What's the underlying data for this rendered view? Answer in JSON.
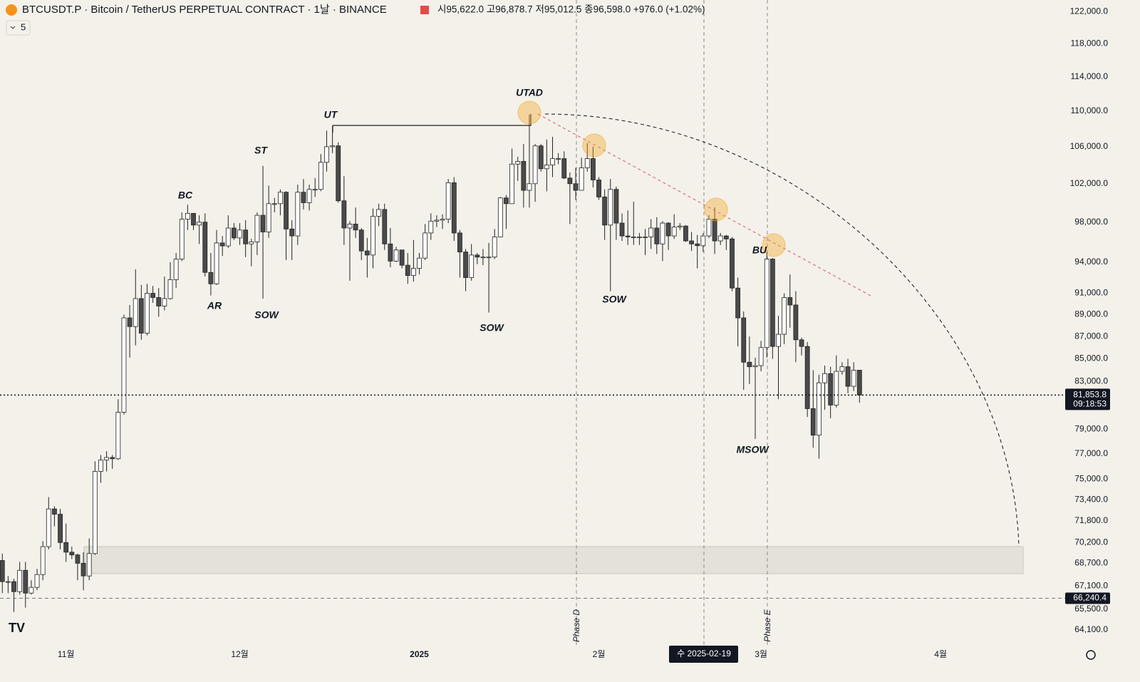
{
  "chart_data": {
    "type": "candlestick",
    "title": "BTCUSDT.P · Bitcoin / TetherUS PERPETUAL CONTRACT · 1날 · BINANCE",
    "ohlc_text": "시95,622.0 고96,878.7 저95,012.5 종96,598.0 +976.0 (+1.02%)",
    "indicator_count": "5",
    "log_scale": true,
    "ylim": [
      63100,
      123500
    ],
    "xlim": [
      -0.4,
      182.9
    ],
    "yticks": [
      {
        "value": 122000,
        "label": "122,000.0"
      },
      {
        "value": 118000,
        "label": "118,000.0"
      },
      {
        "value": 114000,
        "label": "114,000.0"
      },
      {
        "value": 110000,
        "label": "110,000.0"
      },
      {
        "value": 106000,
        "label": "106,000.0"
      },
      {
        "value": 102000,
        "label": "102,000.0"
      },
      {
        "value": 98000,
        "label": "98,000.0"
      },
      {
        "value": 94000,
        "label": "94,000.0"
      },
      {
        "value": 91000,
        "label": "91,000.0"
      },
      {
        "value": 89000,
        "label": "89,000.0"
      },
      {
        "value": 87000,
        "label": "87,000.0"
      },
      {
        "value": 85000,
        "label": "85,000.0"
      },
      {
        "value": 83000,
        "label": "83,000.0"
      },
      {
        "value": 79000,
        "label": "79,000.0"
      },
      {
        "value": 77000,
        "label": "77,000.0"
      },
      {
        "value": 75000,
        "label": "75,000.0"
      },
      {
        "value": 73400,
        "label": "73,400.0"
      },
      {
        "value": 71800,
        "label": "71,800.0"
      },
      {
        "value": 70200,
        "label": "70,200.0"
      },
      {
        "value": 68700,
        "label": "68,700.0"
      },
      {
        "value": 67100,
        "label": "67,100.0"
      },
      {
        "value": 65500,
        "label": "65,500.0"
      },
      {
        "value": 64100,
        "label": "64,100.0"
      }
    ],
    "xticks": [
      {
        "value": 11,
        "label": "11월"
      },
      {
        "value": 41,
        "label": "12월"
      },
      {
        "value": 72,
        "label": "2025"
      },
      {
        "value": 103,
        "label": "2월"
      },
      {
        "value": 131,
        "label": "3월"
      },
      {
        "value": 162,
        "label": "4월"
      }
    ],
    "up_color": "#ffffff",
    "down_color": "#4a4a4a",
    "wick_color": "#222222",
    "current_price": {
      "value": 81853.8,
      "label": "81,853.8"
    },
    "countdown": "09:18:53",
    "level_line": {
      "value": 66240.4,
      "label": "66,240.4"
    },
    "crosshair_label": "수 2025-02-19",
    "phase_labels": [
      "Phase D",
      "Phase E"
    ],
    "annotations": [
      "BC",
      "AR",
      "ST",
      "SOW",
      "UT",
      "SOW",
      "UTAD",
      "SOW",
      "BU",
      "MSOW"
    ],
    "candles": [
      [
        68900,
        69400,
        66600,
        67400
      ],
      [
        67400,
        67800,
        66600,
        67400
      ],
      [
        67400,
        67600,
        65300,
        66700
      ],
      [
        66700,
        68800,
        66500,
        68200
      ],
      [
        68200,
        68800,
        65600,
        66600
      ],
      [
        66600,
        67500,
        66500,
        67000
      ],
      [
        67000,
        68300,
        66800,
        67900
      ],
      [
        67900,
        70300,
        67500,
        69900
      ],
      [
        69900,
        73600,
        69700,
        72700
      ],
      [
        72700,
        72900,
        71400,
        72300
      ],
      [
        72300,
        72700,
        69700,
        70200
      ],
      [
        70200,
        71600,
        68800,
        69500
      ],
      [
        69500,
        69900,
        69000,
        69300
      ],
      [
        69300,
        69400,
        67500,
        68700
      ],
      [
        68700,
        69500,
        66800,
        67800
      ],
      [
        67800,
        70500,
        67500,
        69400
      ],
      [
        69400,
        76400,
        69300,
        75600
      ],
      [
        75600,
        76900,
        74700,
        76500
      ],
      [
        76500,
        77200,
        75600,
        76700
      ],
      [
        76700,
        76900,
        75800,
        76600
      ],
      [
        76600,
        81500,
        76500,
        80400
      ],
      [
        80400,
        89000,
        80200,
        88700
      ],
      [
        88700,
        89900,
        85100,
        87900
      ],
      [
        87900,
        93300,
        86200,
        90500
      ],
      [
        90500,
        91800,
        86700,
        87300
      ],
      [
        87300,
        91900,
        87100,
        91000
      ],
      [
        91000,
        91700,
        90100,
        90600
      ],
      [
        90600,
        91500,
        88800,
        89800
      ],
      [
        89800,
        92600,
        89400,
        90500
      ],
      [
        90500,
        94000,
        90400,
        92300
      ],
      [
        92300,
        94900,
        91500,
        94300
      ],
      [
        94300,
        99000,
        94100,
        98300
      ],
      [
        98300,
        99800,
        97200,
        98900
      ],
      [
        98900,
        98900,
        97200,
        97700
      ],
      [
        97700,
        98700,
        95800,
        98000
      ],
      [
        98000,
        98900,
        92600,
        93000
      ],
      [
        93000,
        94900,
        90800,
        91900
      ],
      [
        91900,
        97200,
        91800,
        95900
      ],
      [
        95900,
        96600,
        94600,
        95600
      ],
      [
        95600,
        98700,
        95400,
        97400
      ],
      [
        97400,
        97900,
        96200,
        96400
      ],
      [
        96400,
        97900,
        95700,
        97200
      ],
      [
        97200,
        98200,
        94500,
        95800
      ],
      [
        95800,
        96300,
        93600,
        96000
      ],
      [
        96000,
        99000,
        94700,
        98700
      ],
      [
        98700,
        103900,
        90500,
        97000
      ],
      [
        97000,
        101800,
        96400,
        99900
      ],
      [
        99900,
        100500,
        99000,
        99900
      ],
      [
        99900,
        101400,
        98700,
        101100
      ],
      [
        101100,
        101200,
        94200,
        97300
      ],
      [
        97300,
        98200,
        94200,
        96600
      ],
      [
        96600,
        101900,
        95700,
        101100
      ],
      [
        101100,
        102500,
        99300,
        100000
      ],
      [
        100000,
        101900,
        99200,
        101400
      ],
      [
        101400,
        102600,
        100600,
        101400
      ],
      [
        101400,
        105200,
        101200,
        104300
      ],
      [
        104300,
        107800,
        103300,
        106000
      ],
      [
        106000,
        108300,
        105300,
        106100
      ],
      [
        106100,
        106500,
        100000,
        100200
      ],
      [
        100200,
        102800,
        95700,
        97400
      ],
      [
        97400,
        98100,
        92200,
        97800
      ],
      [
        97800,
        99500,
        96400,
        97200
      ],
      [
        97200,
        97400,
        94200,
        95100
      ],
      [
        95100,
        96400,
        92500,
        94700
      ],
      [
        94700,
        99400,
        93400,
        98600
      ],
      [
        98600,
        99900,
        97600,
        99300
      ],
      [
        99300,
        99900,
        95200,
        95800
      ],
      [
        95800,
        97400,
        93500,
        94100
      ],
      [
        94100,
        95500,
        94000,
        95200
      ],
      [
        95200,
        95200,
        93400,
        93700
      ],
      [
        93700,
        94900,
        91900,
        92700
      ],
      [
        92700,
        96200,
        92100,
        93400
      ],
      [
        93400,
        94900,
        92800,
        94400
      ],
      [
        94400,
        97800,
        94200,
        96900
      ],
      [
        96900,
        98900,
        96200,
        98100
      ],
      [
        98100,
        98700,
        97500,
        98200
      ],
      [
        98200,
        98800,
        97300,
        98300
      ],
      [
        98300,
        102500,
        97900,
        102100
      ],
      [
        102100,
        102700,
        96100,
        96900
      ],
      [
        96900,
        97200,
        92500,
        95000
      ],
      [
        95000,
        95300,
        91200,
        92500
      ],
      [
        92500,
        95800,
        92200,
        94700
      ],
      [
        94700,
        94900,
        93800,
        94500
      ],
      [
        94500,
        95300,
        93700,
        94500
      ],
      [
        94500,
        95900,
        89200,
        94500
      ],
      [
        94500,
        97300,
        94300,
        96500
      ],
      [
        96500,
        100600,
        96500,
        100500
      ],
      [
        100500,
        100800,
        97300,
        99900
      ],
      [
        99900,
        105800,
        99900,
        104100
      ],
      [
        104100,
        104900,
        102300,
        104400
      ],
      [
        104400,
        106300,
        99500,
        101300
      ],
      [
        101300,
        109600,
        99500,
        102000
      ],
      [
        102000,
        106300,
        100100,
        106100
      ],
      [
        106100,
        106300,
        103300,
        103600
      ],
      [
        103600,
        106800,
        101200,
        104000
      ],
      [
        104000,
        107100,
        102700,
        104700
      ],
      [
        104700,
        105300,
        104100,
        104700
      ],
      [
        104700,
        105500,
        102500,
        102600
      ],
      [
        102600,
        103200,
        97800,
        102000
      ],
      [
        102000,
        103700,
        100300,
        101300
      ],
      [
        101300,
        104800,
        101300,
        103700
      ],
      [
        103700,
        106400,
        103300,
        104700
      ],
      [
        104700,
        106000,
        101600,
        102400
      ],
      [
        102400,
        102700,
        100300,
        100600
      ],
      [
        100600,
        101400,
        96200,
        97700
      ],
      [
        97700,
        102500,
        91200,
        101400
      ],
      [
        101400,
        101700,
        96200,
        97900
      ],
      [
        97900,
        98900,
        96100,
        96600
      ],
      [
        96600,
        99200,
        95700,
        96500
      ],
      [
        96500,
        100100,
        95700,
        96500
      ],
      [
        96500,
        96900,
        95700,
        96500
      ],
      [
        96500,
        97300,
        94700,
        96500
      ],
      [
        96500,
        98300,
        95300,
        97400
      ],
      [
        97400,
        98500,
        94800,
        95800
      ],
      [
        95800,
        98100,
        94100,
        97900
      ],
      [
        97900,
        98000,
        95200,
        96600
      ],
      [
        96600,
        98800,
        96300,
        97500
      ],
      [
        97500,
        97900,
        97200,
        97600
      ],
      [
        97600,
        97700,
        96000,
        96100
      ],
      [
        96100,
        97000,
        95100,
        95800
      ],
      [
        95800,
        96700,
        93400,
        95622
      ],
      [
        95622,
        96878.7,
        95012.5,
        96598
      ],
      [
        96598,
        98700,
        96400,
        98300
      ],
      [
        98300,
        99500,
        94800,
        96100
      ],
      [
        96100,
        96900,
        95700,
        96600
      ],
      [
        96600,
        96700,
        95200,
        96300
      ],
      [
        96300,
        96500,
        91200,
        91500
      ],
      [
        91500,
        92500,
        86100,
        88700
      ],
      [
        88700,
        89300,
        82300,
        84700
      ],
      [
        84700,
        87000,
        82800,
        84300
      ],
      [
        84300,
        85100,
        78200,
        84400
      ],
      [
        84400,
        86600,
        83900,
        86000
      ],
      [
        86000,
        95000,
        85100,
        94300
      ],
      [
        94300,
        94400,
        85000,
        86100
      ],
      [
        86100,
        88900,
        81500,
        87200
      ],
      [
        87200,
        91000,
        86300,
        90600
      ],
      [
        90600,
        92800,
        87800,
        89900
      ],
      [
        89900,
        91200,
        84700,
        86700
      ],
      [
        86700,
        86900,
        85300,
        86100
      ],
      [
        86100,
        86500,
        80000,
        80700
      ],
      [
        80700,
        84000,
        77500,
        78500
      ],
      [
        78500,
        83600,
        76600,
        82900
      ],
      [
        82900,
        84400,
        80600,
        83700
      ],
      [
        83700,
        84300,
        79900,
        81000
      ],
      [
        81000,
        85300,
        80800,
        83900
      ],
      [
        83900,
        84700,
        83600,
        84300
      ],
      [
        84300,
        85000,
        82000,
        82600
      ],
      [
        82600,
        84700,
        82200,
        84000
      ],
      [
        84000,
        84000,
        81200,
        81853.8
      ]
    ]
  }
}
